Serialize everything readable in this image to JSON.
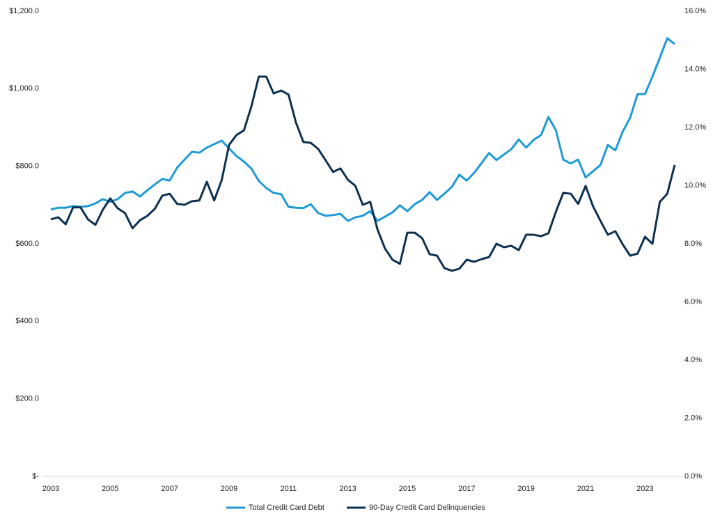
{
  "chart_data": {
    "type": "line",
    "x": [
      2003,
      2003.25,
      2003.5,
      2003.75,
      2004,
      2004.25,
      2004.5,
      2004.75,
      2005,
      2005.25,
      2005.5,
      2005.75,
      2006,
      2006.25,
      2006.5,
      2006.75,
      2007,
      2007.25,
      2007.5,
      2007.75,
      2008,
      2008.25,
      2008.5,
      2008.75,
      2009,
      2009.25,
      2009.5,
      2009.75,
      2010,
      2010.25,
      2010.5,
      2010.75,
      2011,
      2011.25,
      2011.5,
      2011.75,
      2012,
      2012.25,
      2012.5,
      2012.75,
      2013,
      2013.25,
      2013.5,
      2013.75,
      2014,
      2014.25,
      2014.5,
      2014.75,
      2015,
      2015.25,
      2015.5,
      2015.75,
      2016,
      2016.25,
      2016.5,
      2016.75,
      2017,
      2017.25,
      2017.5,
      2017.75,
      2018,
      2018.25,
      2018.5,
      2018.75,
      2019,
      2019.25,
      2019.5,
      2019.75,
      2020,
      2020.25,
      2020.5,
      2020.75,
      2021,
      2021.25,
      2021.5,
      2021.75,
      2022,
      2022.25,
      2022.5,
      2022.75,
      2023,
      2023.25,
      2023.5,
      2023.75,
      2024
    ],
    "series": [
      {
        "name": "Total Credit Card Debt",
        "color": "#1e9ad6",
        "values": [
          688,
          693,
          693,
          697,
          695,
          697,
          704,
          715,
          708,
          715,
          731,
          735,
          722,
          738,
          753,
          767,
          763,
          796,
          817,
          837,
          835,
          848,
          857,
          866,
          846,
          826,
          812,
          794,
          762,
          744,
          731,
          728,
          695,
          693,
          692,
          702,
          679,
          672,
          674,
          677,
          659,
          668,
          672,
          684,
          659,
          670,
          681,
          699,
          684,
          702,
          713,
          733,
          713,
          729,
          747,
          778,
          763,
          783,
          808,
          834,
          816,
          830,
          844,
          869,
          848,
          868,
          880,
          927,
          893,
          817,
          807,
          817,
          771,
          787,
          803,
          855,
          841,
          889,
          925,
          986,
          986,
          1031,
          1080,
          1130,
          1115
        ]
      },
      {
        "name": "90-Day Credit Card Delinquencies",
        "color": "#0d3050",
        "axis": "y2",
        "values": [
          8.84,
          8.91,
          8.67,
          9.25,
          9.25,
          8.84,
          8.65,
          9.17,
          9.56,
          9.22,
          9.05,
          8.53,
          8.81,
          8.96,
          9.2,
          9.65,
          9.72,
          9.37,
          9.34,
          9.46,
          9.49,
          10.13,
          9.49,
          10.18,
          11.4,
          11.74,
          11.9,
          12.72,
          13.75,
          13.75,
          13.17,
          13.27,
          13.13,
          12.17,
          11.5,
          11.47,
          11.26,
          10.87,
          10.47,
          10.59,
          10.2,
          9.99,
          9.34,
          9.44,
          8.48,
          7.83,
          7.45,
          7.31,
          8.38,
          8.38,
          8.19,
          7.64,
          7.59,
          7.16,
          7.07,
          7.14,
          7.45,
          7.38,
          7.47,
          7.54,
          8.0,
          7.88,
          7.93,
          7.78,
          8.31,
          8.31,
          8.26,
          8.36,
          9.1,
          9.75,
          9.72,
          9.37,
          9.99,
          9.29,
          8.79,
          8.31,
          8.43,
          7.98,
          7.59,
          7.66,
          8.24,
          8.0,
          9.44,
          9.72,
          10.71
        ]
      }
    ],
    "xlim": [
      2003,
      2024
    ],
    "xticks": [
      2003,
      2005,
      2007,
      2009,
      2011,
      2013,
      2015,
      2017,
      2019,
      2021,
      2023
    ],
    "ylim": [
      0,
      1200
    ],
    "yticks": [
      {
        "value": 0,
        "label": "$-"
      },
      {
        "value": 200,
        "label": "$200.0"
      },
      {
        "value": 400,
        "label": "$400.0"
      },
      {
        "value": 600,
        "label": "$600.0"
      },
      {
        "value": 800,
        "label": "$800.0"
      },
      {
        "value": 1000,
        "label": "$1,000.0"
      },
      {
        "value": 1200,
        "label": "$1,200.0"
      }
    ],
    "y2lim": [
      0,
      16
    ],
    "y2ticks": [
      {
        "value": 0,
        "label": "0.0%"
      },
      {
        "value": 2,
        "label": "2.0%"
      },
      {
        "value": 4,
        "label": "4.0%"
      },
      {
        "value": 6,
        "label": "6.0%"
      },
      {
        "value": 8,
        "label": "8.0%"
      },
      {
        "value": 10,
        "label": "10.0%"
      },
      {
        "value": 12,
        "label": "12.0%"
      },
      {
        "value": 14,
        "label": "14.0%"
      },
      {
        "value": 16,
        "label": "16.0%"
      }
    ],
    "grid": false,
    "legend": "bottom"
  }
}
